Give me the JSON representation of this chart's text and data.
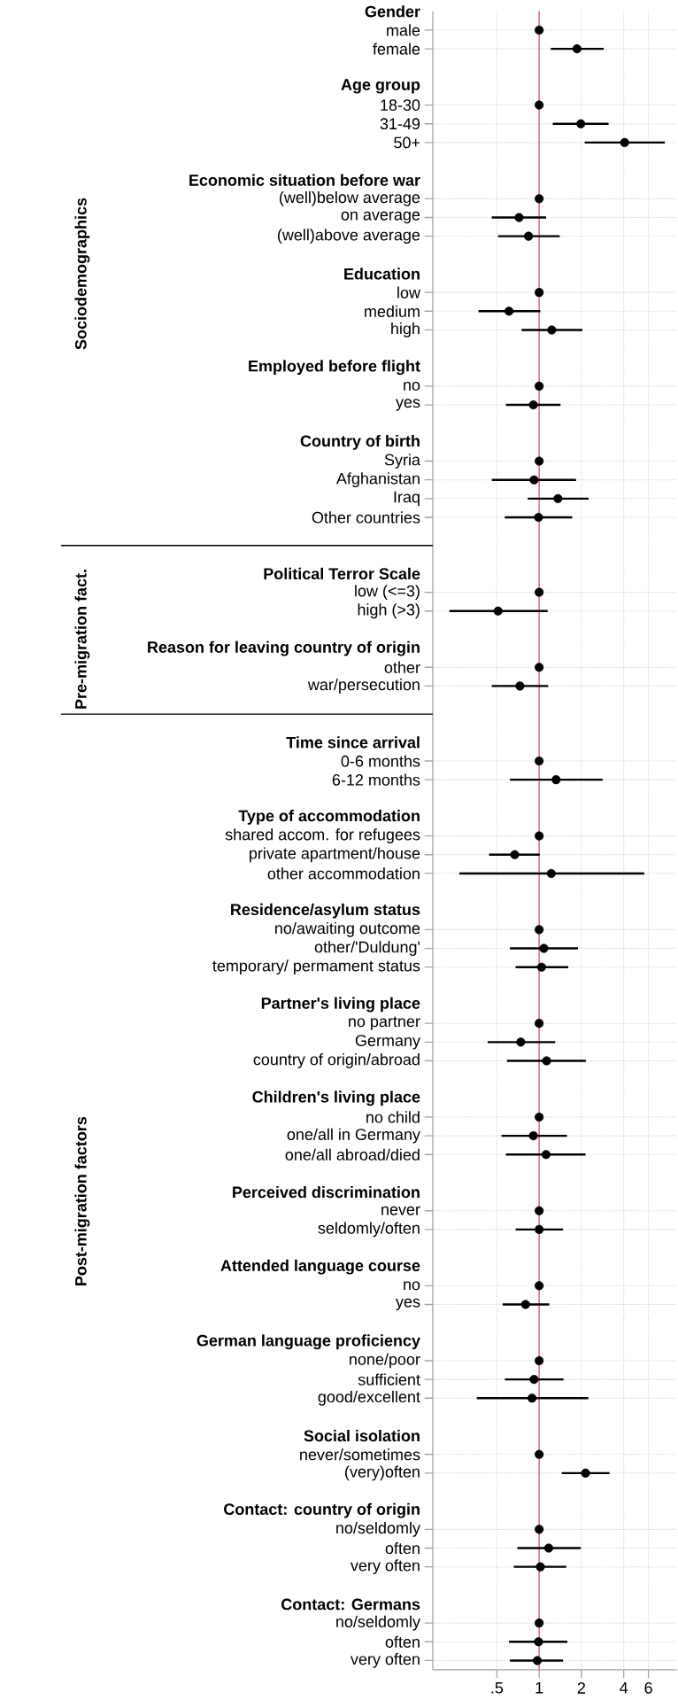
{
  "chart_data": {
    "type": "scatter",
    "orientation": "horizontal",
    "log": "x",
    "grid": true,
    "marker": "circle",
    "color": "#000000",
    "categories": [
      "Gender",
      "male",
      "female",
      null,
      "Age group",
      "18-30",
      "31-49",
      "50+",
      null,
      "Economic situation before war",
      "(well)below average",
      "on average",
      "(well)above average",
      null,
      "Education",
      "low",
      "medium",
      "high",
      null,
      "Employed before flight",
      "no",
      "yes",
      null,
      "Country of birth",
      "Syria",
      "Afghanistan",
      "Iraq",
      "Other countries",
      null,
      null,
      "Political Terror Scale",
      "low (<=3)",
      "high (>3)",
      null,
      "Reason for leaving country of origin",
      "other",
      "war/persecution",
      null,
      null,
      "Time since arrival",
      "0-6 months",
      "6-12 months",
      null,
      "Type of accommodation",
      "shared accom. for refugees",
      "private apartment/house",
      "other accommodation",
      null,
      "Residence/asylum status",
      "no/awaiting outcome",
      "other/'Duldung'",
      "temporary/ permament status",
      null,
      "Partner's living place",
      "no partner",
      "Germany",
      "country of origin/abroad",
      null,
      "Children's living place",
      "no child",
      "one/all in Germany",
      "one/all abroad/died",
      null,
      "Perceived discrimination",
      "never",
      "seldomly/often",
      null,
      "Attended language course",
      "no",
      "yes",
      null,
      "German language proficiency",
      "none/poor",
      "sufficient",
      "good/excellent",
      null,
      "Social isolation",
      "never/sometimes",
      "(very)often",
      null,
      "Contact: country of origin",
      "no/seldomly",
      "often",
      "very often",
      null,
      "Contact: Germans",
      "no/seldomly",
      "often",
      "very often"
    ],
    "values": [
      null,
      1,
      1.86,
      null,
      null,
      1,
      1.98,
      4.06,
      null,
      null,
      1,
      0.72,
      0.84,
      null,
      null,
      1,
      0.61,
      1.23,
      null,
      null,
      1,
      0.91,
      null,
      null,
      1,
      0.92,
      1.36,
      0.99,
      null,
      null,
      null,
      1,
      0.51,
      null,
      null,
      1,
      0.73,
      null,
      null,
      null,
      1,
      1.32,
      null,
      null,
      1,
      0.67,
      1.22,
      null,
      null,
      1,
      1.08,
      1.04,
      null,
      null,
      1,
      0.74,
      1.13,
      null,
      null,
      1,
      0.91,
      1.12,
      null,
      null,
      1,
      1.0,
      null,
      null,
      1,
      0.8,
      null,
      null,
      1,
      0.92,
      0.89,
      null,
      null,
      1,
      2.14,
      null,
      null,
      1,
      1.17,
      1.02,
      null,
      null,
      1,
      0.99,
      0.97
    ],
    "errors": [
      null,
      null,
      [
        1.21,
        2.88
      ],
      null,
      null,
      null,
      [
        1.25,
        3.12
      ],
      [
        2.11,
        7.85
      ],
      null,
      null,
      null,
      [
        0.46,
        1.12
      ],
      [
        0.51,
        1.4
      ],
      null,
      null,
      null,
      [
        0.37,
        1.02
      ],
      [
        0.75,
        2.03
      ],
      null,
      null,
      null,
      [
        0.58,
        1.42
      ],
      null,
      null,
      null,
      [
        0.46,
        1.83
      ],
      [
        0.83,
        2.25
      ],
      [
        0.57,
        1.72
      ],
      null,
      null,
      null,
      null,
      [
        0.23,
        1.15
      ],
      null,
      null,
      null,
      [
        0.46,
        1.16
      ],
      null,
      null,
      null,
      null,
      [
        0.62,
        2.83
      ],
      null,
      null,
      null,
      [
        0.44,
        1.01
      ],
      [
        0.27,
        5.6
      ],
      null,
      null,
      null,
      [
        0.62,
        1.89
      ],
      [
        0.68,
        1.61
      ],
      null,
      null,
      null,
      [
        0.43,
        1.3
      ],
      [
        0.59,
        2.15
      ],
      null,
      null,
      null,
      [
        0.54,
        1.58
      ],
      [
        0.58,
        2.14
      ],
      null,
      null,
      null,
      [
        0.68,
        1.48
      ],
      null,
      null,
      null,
      [
        0.55,
        1.18
      ],
      null,
      null,
      null,
      [
        0.57,
        1.49
      ],
      [
        0.36,
        2.24
      ],
      null,
      null,
      null,
      [
        1.45,
        3.17
      ],
      null,
      null,
      null,
      [
        0.7,
        1.98
      ],
      [
        0.66,
        1.56
      ],
      null,
      null,
      null,
      [
        0.61,
        1.59
      ],
      [
        0.62,
        1.48
      ]
    ],
    "xlim": [
      0.175,
      9.6
    ],
    "xticks": [
      {
        "value": 0.5,
        "label": ".5"
      },
      1,
      2,
      4,
      6
    ],
    "ref_lines": [
      {
        "axis": "x",
        "value": 1,
        "color": "#d670a8"
      }
    ],
    "annotations": [
      "Sociodemographics",
      "Pre-migration fact.",
      "Post-migration factors"
    ]
  }
}
